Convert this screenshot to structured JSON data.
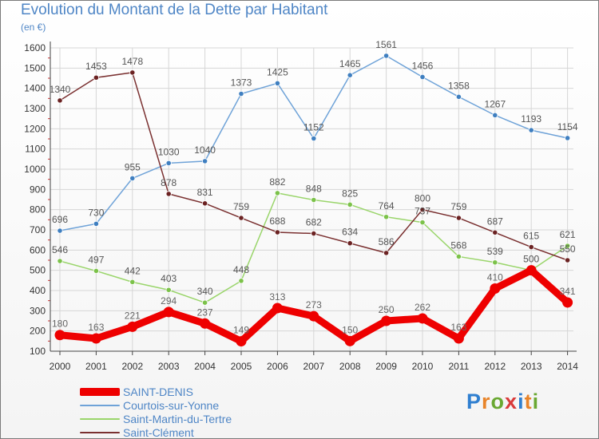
{
  "title": "Evolution du Montant de la Dette par Habitant",
  "subtitle": "(en €)",
  "logo": {
    "text": "Proxiti",
    "letter_colors": [
      "#2f7fd0",
      "#e8842a",
      "#6aa832",
      "#d93a3a",
      "#2f7fd0",
      "#e8842a",
      "#6aa832"
    ]
  },
  "chart_data": {
    "type": "line",
    "title": "Evolution du Montant de la Dette par Habitant",
    "subtitle": "(en €)",
    "xlabel": "",
    "ylabel": "",
    "ylim": [
      100,
      1600
    ],
    "y_ticks": [
      100,
      200,
      300,
      400,
      500,
      600,
      700,
      800,
      900,
      1000,
      1100,
      1200,
      1300,
      1400,
      1500,
      1600
    ],
    "x_ticks": [
      "2000",
      "2001",
      "2002",
      "2003",
      "2004",
      "2005",
      "2006",
      "2007",
      "2008",
      "2009",
      "2010",
      "2011",
      "2012",
      "2013",
      "2014"
    ],
    "grid": true,
    "legend_position": "bottom-left",
    "series": [
      {
        "name": "SAINT-DENIS",
        "color": "#ee0000",
        "marker_color": "#ee0000",
        "label_color": "#666666",
        "emphasis": "thick",
        "values": [
          180,
          163,
          221,
          294,
          237,
          149,
          313,
          273,
          150,
          250,
          262,
          163,
          410,
          500,
          341
        ],
        "labels": [
          "180",
          "163",
          "221",
          "294",
          "237",
          "149",
          "313",
          "273",
          "150",
          "250",
          "262",
          "163",
          "410",
          "500",
          "341"
        ]
      },
      {
        "name": "Courtois-sur-Yonne",
        "color": "#6fa3d8",
        "marker_color": "#3f7fc0",
        "label_color": "#555555",
        "emphasis": "normal",
        "values": [
          696,
          730,
          955,
          1030,
          1040,
          1373,
          1425,
          1152,
          1465,
          1561,
          1456,
          1358,
          1267,
          1193,
          1154
        ],
        "labels": [
          "696",
          "730",
          "955",
          "1030",
          "1040",
          "1373",
          "1425",
          "1152",
          "1465",
          "1561",
          "1456",
          "1358",
          "1267",
          "1193",
          "1154"
        ]
      },
      {
        "name": "Saint-Martin-du-Tertre",
        "color": "#9ad56b",
        "marker_color": "#7cc24a",
        "label_color": "#555555",
        "emphasis": "normal",
        "values": [
          546,
          497,
          442,
          403,
          340,
          448,
          882,
          848,
          825,
          764,
          737,
          568,
          539,
          500,
          621
        ],
        "labels": [
          "546",
          "497",
          "442",
          "403",
          "340",
          "448",
          "882",
          "848",
          "825",
          "764",
          "737",
          "568",
          "539",
          "500",
          "621"
        ]
      },
      {
        "name": "Saint-Clément",
        "color": "#7a3030",
        "marker_color": "#6b2222",
        "label_color": "#555555",
        "emphasis": "normal",
        "values": [
          1340,
          1453,
          1478,
          878,
          831,
          759,
          688,
          682,
          634,
          586,
          800,
          759,
          687,
          615,
          550
        ],
        "labels": [
          "1340",
          "1453",
          "1478",
          "878",
          "831",
          "759",
          "688",
          "682",
          "634",
          "586",
          "800",
          "759",
          "687",
          "615",
          "550"
        ]
      }
    ]
  }
}
